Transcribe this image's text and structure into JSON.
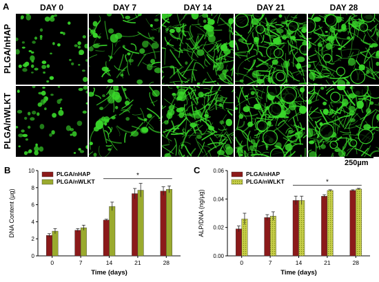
{
  "panel_a": {
    "letter": "A",
    "days": [
      "DAY 0",
      "DAY 7",
      "DAY 14",
      "DAY 21",
      "DAY 28"
    ],
    "rows": [
      "PLGA/nHAP",
      "PLGA/nWLKT"
    ],
    "scale_label": "250µm",
    "colors": {
      "fluorescence": "#39d82a",
      "background": "#000000"
    }
  },
  "chart_data": [
    {
      "type": "bar",
      "letter": "B",
      "categories": [
        "0",
        "7",
        "14",
        "21",
        "28"
      ],
      "series": [
        {
          "name": "PLGA/nHAP",
          "values": [
            2.4,
            3.0,
            4.2,
            7.3,
            7.6
          ],
          "errors": [
            0.2,
            0.2,
            0.1,
            0.6,
            0.5
          ],
          "color": "#8b1a1a"
        },
        {
          "name": "PLGA/nWLKT",
          "values": [
            2.9,
            3.3,
            5.8,
            7.7,
            7.8
          ],
          "errors": [
            0.3,
            0.3,
            0.5,
            0.8,
            0.4
          ],
          "color": "#9aaa2e"
        }
      ],
      "xlabel": "Time (days)",
      "ylabel": "DNA Content (µg)",
      "ylim": [
        0,
        10
      ],
      "yticks": [
        "0",
        "2",
        "4",
        "6",
        "8",
        "10"
      ],
      "annotation": "*",
      "legend": "top-left"
    },
    {
      "type": "bar",
      "letter": "C",
      "categories": [
        "0",
        "7",
        "14",
        "21",
        "28"
      ],
      "series": [
        {
          "name": "PLGA/nHAP",
          "values": [
            0.019,
            0.027,
            0.039,
            0.042,
            0.046
          ],
          "errors": [
            0.002,
            0.002,
            0.003,
            0.001,
            0.0005
          ],
          "color": "#8b1a1a"
        },
        {
          "name": "PLGA/nWLKT",
          "values": [
            0.026,
            0.028,
            0.039,
            0.046,
            0.047
          ],
          "errors": [
            0.004,
            0.003,
            0.003,
            0.0005,
            0.0005
          ],
          "color": "#c8cf4a"
        }
      ],
      "xlabel": "Time (days)",
      "ylabel": "ALP/DNA (ng/µg)",
      "ylim": [
        0,
        0.06
      ],
      "yticks": [
        "0.00",
        "0.02",
        "0.04",
        "0.06"
      ],
      "annotation": "*",
      "legend": "top-left"
    }
  ]
}
